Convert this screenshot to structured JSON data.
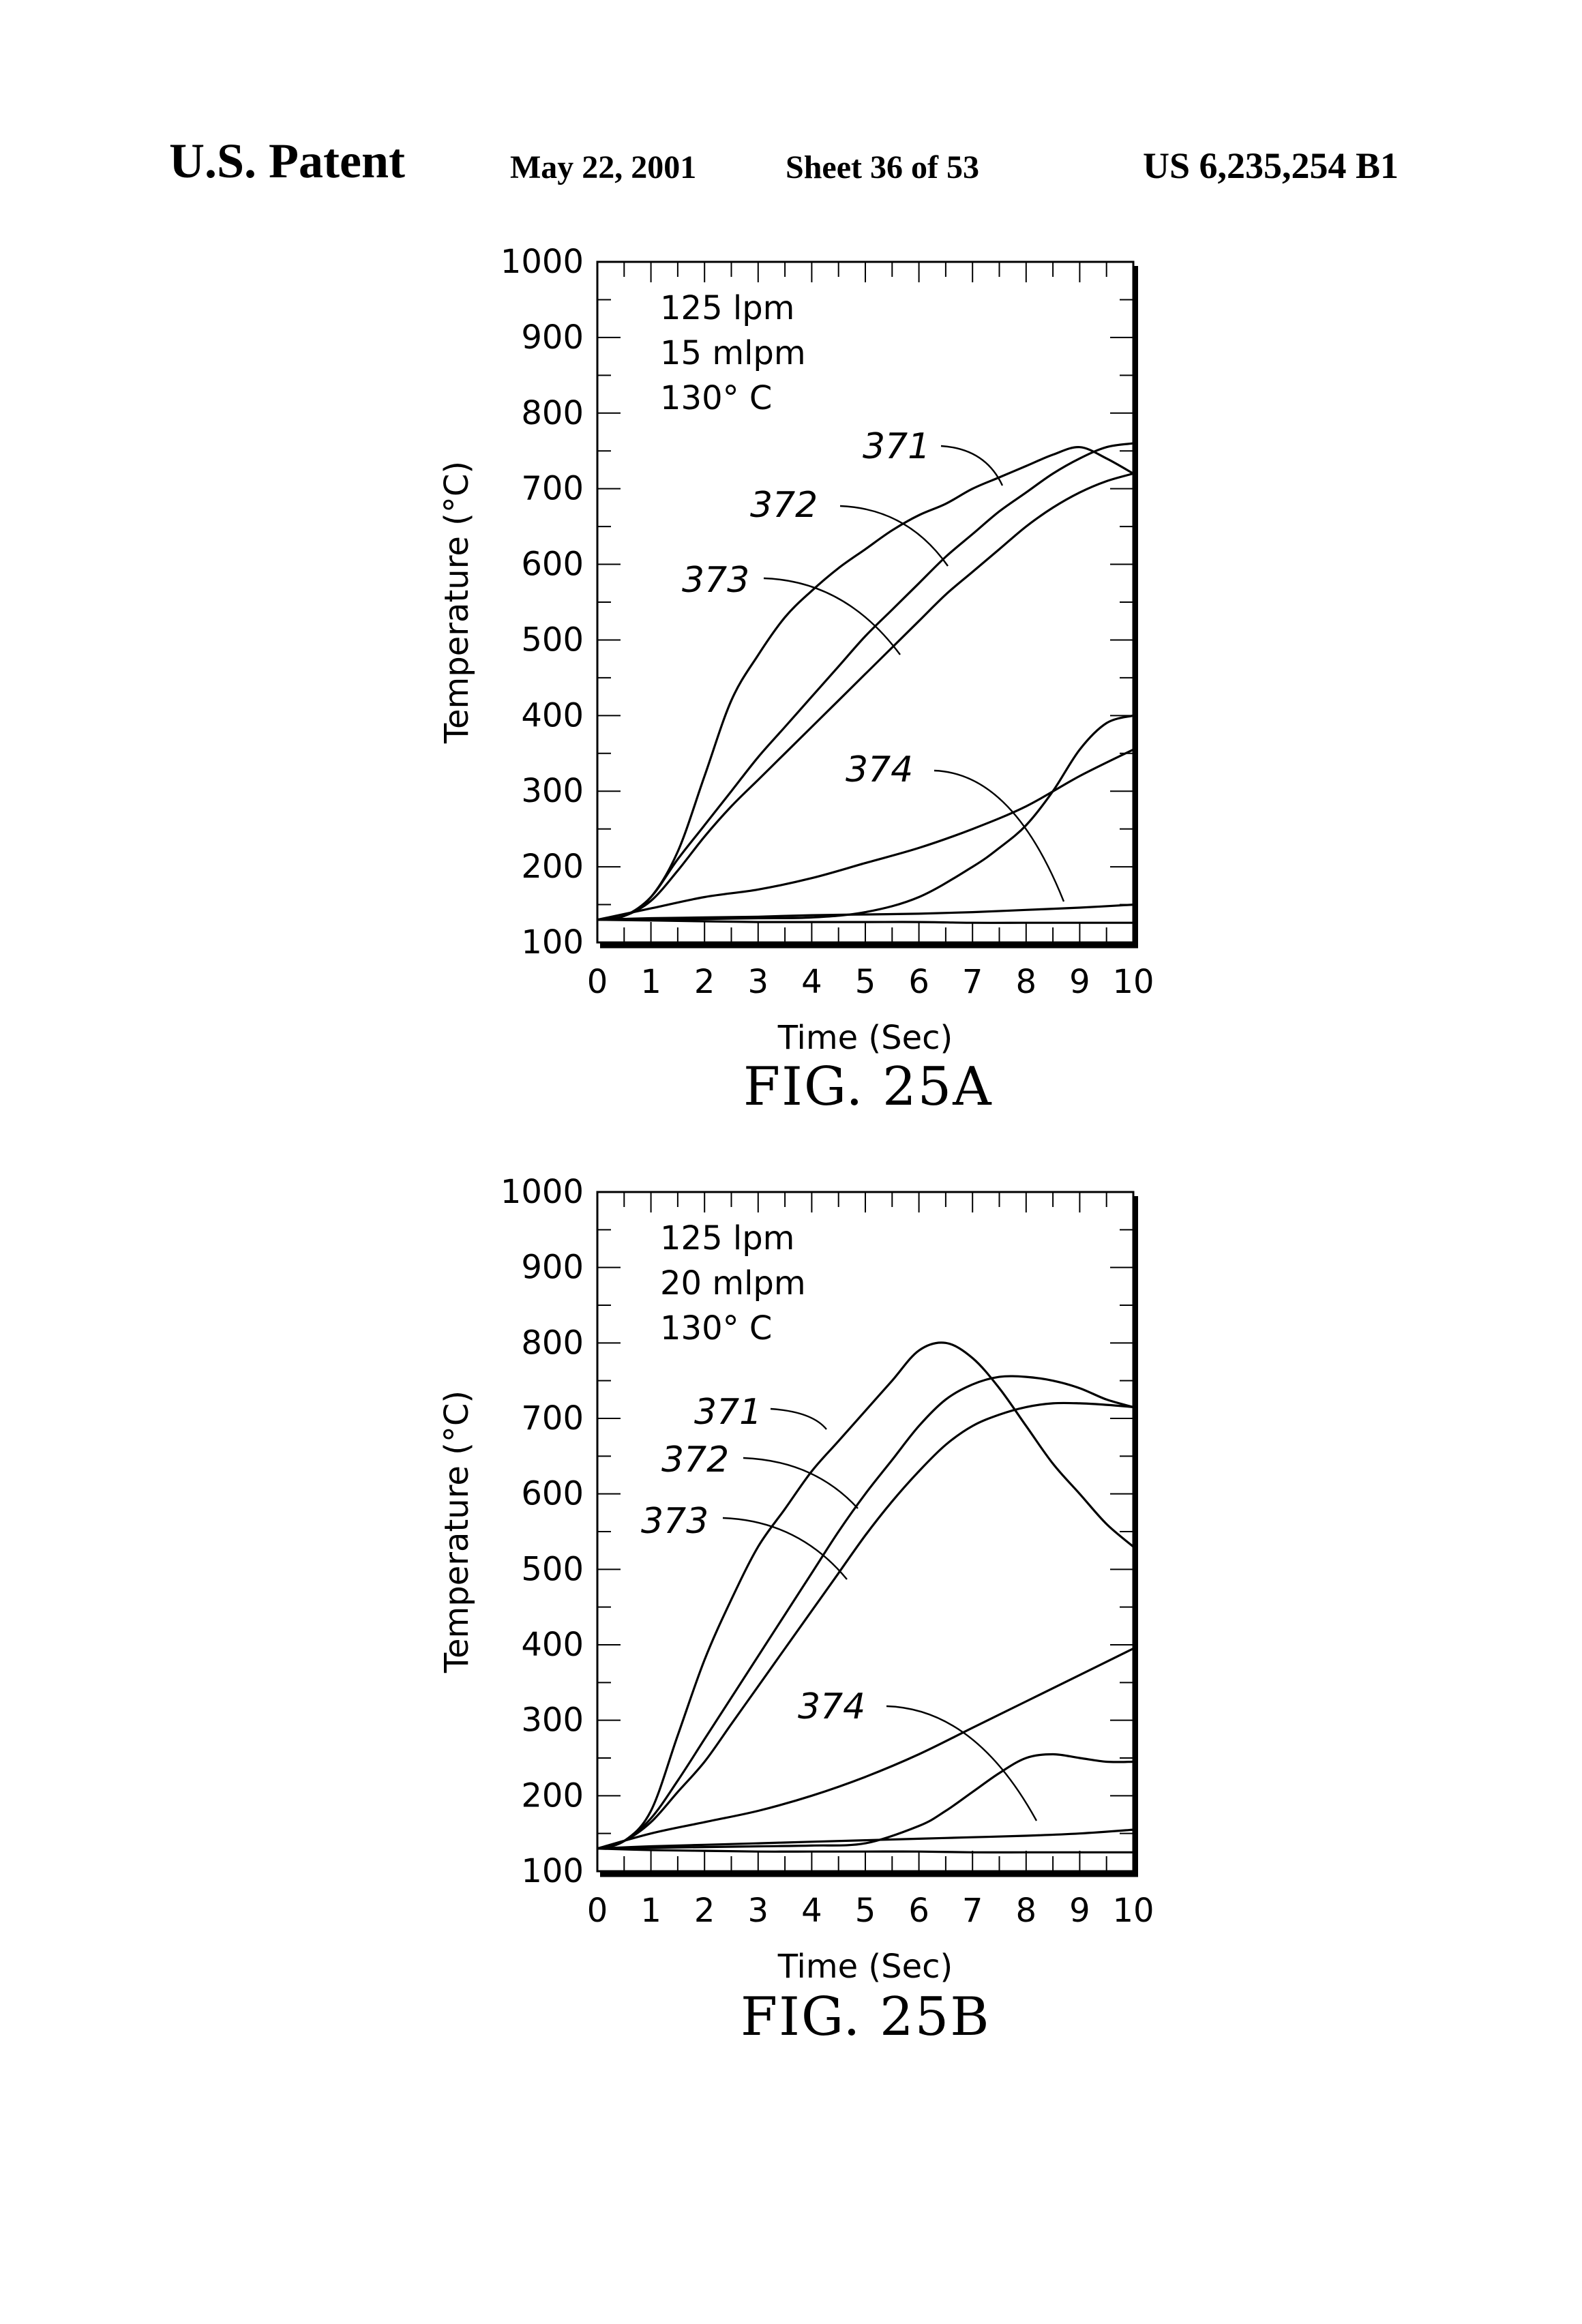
{
  "header": {
    "title": "U.S. Patent",
    "date": "May 22, 2001",
    "sheet": "Sheet 36 of 53",
    "patent_number": "US 6,235,254 B1"
  },
  "chart_data": [
    {
      "type": "line",
      "caption": "FIG. 25A",
      "xlabel": "Time (Sec)",
      "ylabel": "Temperature (°C)",
      "xlim": [
        0,
        10
      ],
      "ylim": [
        100,
        1000
      ],
      "x_ticks": [
        "0",
        "1",
        "2",
        "3",
        "4",
        "5",
        "6",
        "7",
        "8",
        "9",
        "10"
      ],
      "y_ticks": [
        "100",
        "200",
        "300",
        "400",
        "500",
        "600",
        "700",
        "800",
        "900",
        "1000"
      ],
      "annotation": [
        "125 lpm",
        "15 mlpm",
        "130° C"
      ],
      "series": [
        {
          "name": "371",
          "x": [
            0,
            0.5,
            1,
            1.5,
            2,
            2.5,
            3,
            3.5,
            4,
            4.5,
            5,
            5.5,
            6,
            6.5,
            7,
            7.5,
            8,
            8.5,
            9,
            9.5,
            10
          ],
          "y": [
            130,
            135,
            160,
            220,
            320,
            420,
            480,
            530,
            565,
            595,
            620,
            645,
            665,
            680,
            700,
            715,
            730,
            745,
            755,
            740,
            720
          ]
        },
        {
          "name": "372",
          "x": [
            0,
            0.5,
            1,
            1.5,
            2,
            2.5,
            3,
            3.5,
            4,
            4.5,
            5,
            5.5,
            6,
            6.5,
            7,
            7.5,
            8,
            8.5,
            9,
            9.5,
            10
          ],
          "y": [
            130,
            135,
            160,
            210,
            255,
            300,
            345,
            385,
            425,
            465,
            505,
            540,
            575,
            610,
            640,
            670,
            695,
            720,
            740,
            755,
            760
          ]
        },
        {
          "name": "373",
          "x": [
            0,
            0.5,
            1,
            1.5,
            2,
            2.5,
            3,
            3.5,
            4,
            4.5,
            5,
            5.5,
            6,
            6.5,
            7,
            7.5,
            8,
            8.5,
            9,
            9.5,
            10
          ],
          "y": [
            130,
            135,
            155,
            195,
            240,
            280,
            315,
            350,
            385,
            420,
            455,
            490,
            525,
            560,
            590,
            620,
            650,
            675,
            695,
            710,
            720
          ]
        },
        {
          "name": "374",
          "x": [
            0,
            1,
            2,
            3,
            4,
            5,
            6,
            7,
            8,
            9,
            10
          ],
          "y": [
            130,
            145,
            160,
            170,
            185,
            205,
            225,
            250,
            280,
            320,
            355
          ]
        },
        {
          "name": "",
          "x": [
            0,
            1,
            2,
            3,
            4,
            5,
            6,
            7,
            7.5,
            8,
            8.5,
            9,
            9.5,
            10
          ],
          "y": [
            130,
            130,
            131,
            132,
            133,
            140,
            160,
            200,
            225,
            255,
            300,
            355,
            390,
            400
          ]
        },
        {
          "name": "",
          "x": [
            0,
            1,
            2,
            3,
            4,
            5,
            6,
            7,
            8,
            9,
            10
          ],
          "y": [
            130,
            132,
            133,
            134,
            136,
            137,
            138,
            140,
            143,
            146,
            150
          ]
        },
        {
          "name": "",
          "x": [
            0,
            1,
            2,
            3,
            4,
            5,
            6,
            7,
            8,
            9,
            10
          ],
          "y": [
            130,
            129,
            128,
            127,
            127,
            127,
            127,
            126,
            126,
            126,
            126
          ]
        }
      ]
    },
    {
      "type": "line",
      "caption": "FIG. 25B",
      "xlabel": "Time (Sec)",
      "ylabel": "Temperature (°C)",
      "xlim": [
        0,
        10
      ],
      "ylim": [
        100,
        1000
      ],
      "x_ticks": [
        "0",
        "1",
        "2",
        "3",
        "4",
        "5",
        "6",
        "7",
        "8",
        "9",
        "10"
      ],
      "y_ticks": [
        "100",
        "200",
        "300",
        "400",
        "500",
        "600",
        "700",
        "800",
        "900",
        "1000"
      ],
      "annotation": [
        "125 lpm",
        "20 mlpm",
        "130° C"
      ],
      "series": [
        {
          "name": "371",
          "x": [
            0,
            0.5,
            1,
            1.5,
            2,
            2.5,
            3,
            3.5,
            4,
            4.5,
            5,
            5.5,
            6,
            6.5,
            7,
            7.5,
            8,
            8.5,
            9,
            9.5,
            10
          ],
          "y": [
            130,
            140,
            180,
            280,
            380,
            460,
            530,
            580,
            630,
            670,
            710,
            750,
            790,
            800,
            780,
            740,
            690,
            640,
            600,
            560,
            530
          ]
        },
        {
          "name": "372",
          "x": [
            0,
            0.5,
            1,
            1.5,
            2,
            2.5,
            3,
            3.5,
            4,
            4.5,
            5,
            5.5,
            6,
            6.5,
            7,
            7.5,
            8,
            8.5,
            9,
            9.5,
            10
          ],
          "y": [
            130,
            140,
            170,
            220,
            275,
            330,
            385,
            440,
            495,
            550,
            600,
            645,
            690,
            725,
            745,
            755,
            755,
            750,
            740,
            725,
            715
          ]
        },
        {
          "name": "373",
          "x": [
            0,
            0.5,
            1,
            1.5,
            2,
            2.5,
            3,
            3.5,
            4,
            4.5,
            5,
            5.5,
            6,
            6.5,
            7,
            7.5,
            8,
            8.5,
            9,
            9.5,
            10
          ],
          "y": [
            130,
            140,
            165,
            205,
            245,
            295,
            345,
            395,
            445,
            495,
            545,
            590,
            630,
            665,
            690,
            705,
            715,
            720,
            720,
            718,
            715
          ]
        },
        {
          "name": "374",
          "x": [
            0,
            1,
            2,
            3,
            4,
            5,
            6,
            7,
            8,
            9,
            10
          ],
          "y": [
            130,
            150,
            165,
            180,
            200,
            225,
            255,
            290,
            325,
            360,
            395
          ]
        },
        {
          "name": "",
          "x": [
            0,
            1,
            2,
            3,
            4,
            5,
            6,
            6.5,
            7,
            7.5,
            8,
            8.5,
            9,
            9.5,
            10
          ],
          "y": [
            130,
            131,
            132,
            133,
            134,
            137,
            160,
            180,
            205,
            230,
            250,
            255,
            250,
            245,
            245
          ]
        },
        {
          "name": "",
          "x": [
            0,
            1,
            2,
            3,
            4,
            5,
            6,
            7,
            8,
            9,
            10
          ],
          "y": [
            130,
            133,
            135,
            137,
            139,
            141,
            143,
            145,
            147,
            150,
            155
          ]
        },
        {
          "name": "",
          "x": [
            0,
            1,
            2,
            3,
            4,
            5,
            6,
            7,
            8,
            9,
            10
          ],
          "y": [
            130,
            128,
            127,
            126,
            126,
            126,
            126,
            125,
            125,
            125,
            125
          ]
        }
      ]
    }
  ]
}
